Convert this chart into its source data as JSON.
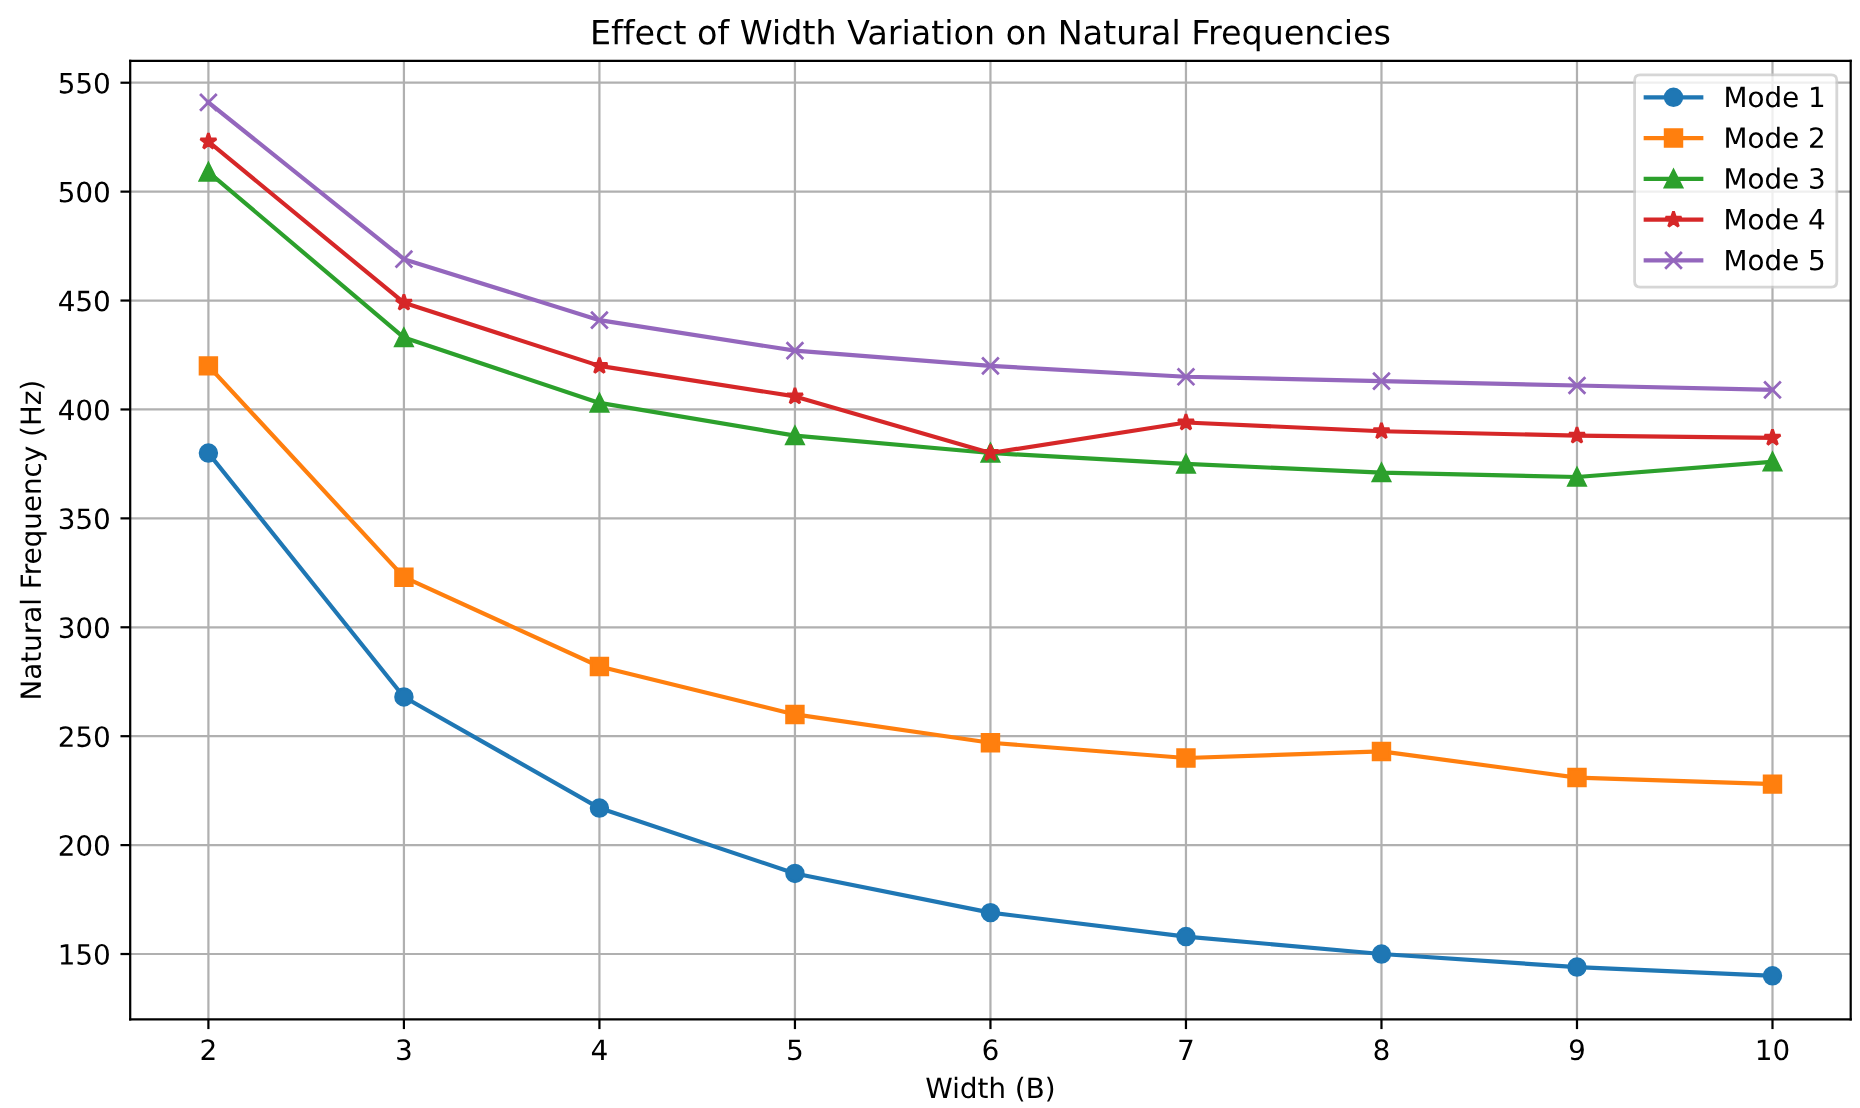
{
  "chart_data": {
    "type": "line",
    "title": "Effect of Width Variation on Natural Frequencies",
    "xlabel": "Width (B)",
    "ylabel": "Natural Frequency (Hz)",
    "x": [
      2,
      3,
      4,
      5,
      6,
      7,
      8,
      9,
      10
    ],
    "series": [
      {
        "name": "Mode 1",
        "color": "#1f77b4",
        "marker": "circle",
        "values": [
          380,
          268,
          217,
          187,
          169,
          158,
          150,
          144,
          140
        ]
      },
      {
        "name": "Mode 2",
        "color": "#ff7f0e",
        "marker": "square",
        "values": [
          420,
          323,
          282,
          260,
          247,
          240,
          243,
          231,
          228
        ]
      },
      {
        "name": "Mode 3",
        "color": "#2ca02c",
        "marker": "triangle",
        "values": [
          509,
          433,
          403,
          388,
          380,
          375,
          371,
          369,
          376
        ]
      },
      {
        "name": "Mode 4",
        "color": "#d62728",
        "marker": "star",
        "values": [
          523,
          449,
          420,
          406,
          380,
          394,
          390,
          388,
          387
        ]
      },
      {
        "name": "Mode 5",
        "color": "#9467bd",
        "marker": "cross",
        "values": [
          541,
          469,
          441,
          427,
          420,
          415,
          413,
          411,
          409
        ]
      }
    ],
    "xlim": [
      1.6,
      10.4
    ],
    "ylim": [
      120,
      560
    ],
    "xticks": [
      2,
      3,
      4,
      5,
      6,
      7,
      8,
      9,
      10
    ],
    "yticks": [
      150,
      200,
      250,
      300,
      350,
      400,
      450,
      500,
      550
    ],
    "grid": true,
    "legend": "top right",
    "line_style": "solid"
  }
}
